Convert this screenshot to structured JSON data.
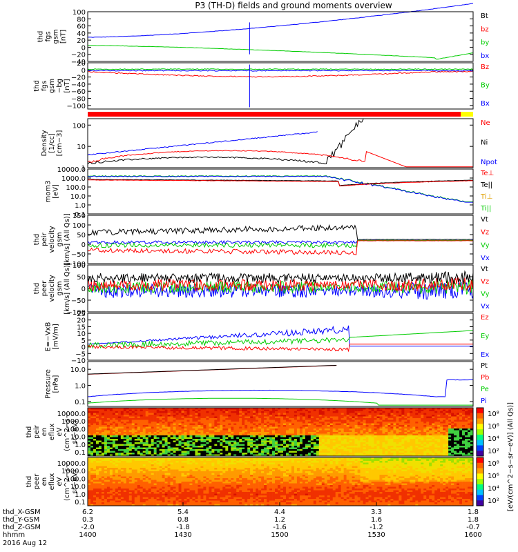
{
  "chart_data": {
    "type": "line",
    "title": "P3 (TH-D) fields and ground moments overview",
    "x": {
      "ticks": [
        "1400",
        "1430",
        "1500",
        "1530",
        "1600"
      ],
      "ephemeris": [
        {
          "label": "thd_X-GSM",
          "values": [
            "6.2",
            "5.4",
            "4.4",
            "3.3",
            "1.8"
          ]
        },
        {
          "label": "thd_Y-GSM",
          "values": [
            "0.3",
            "0.8",
            "1.2",
            "1.6",
            "1.8"
          ]
        },
        {
          "label": "thd_Z-GSM",
          "values": [
            "-2.0",
            "-1.8",
            "-1.6",
            "-1.2",
            "-0.7"
          ]
        },
        {
          "label": "hhmm",
          "values": [
            "1400",
            "1430",
            "1500",
            "1530",
            "1600"
          ]
        }
      ],
      "date": "2016 Aug 12"
    },
    "panels": [
      {
        "ylabel": [
          "thd",
          "fgs",
          "gsm",
          "[nT]"
        ],
        "ylim": [
          -40,
          100
        ],
        "yticks": [
          "100",
          "80",
          "60",
          "40",
          "20",
          "0",
          "−20",
          "−40"
        ],
        "legend": [
          {
            "name": "Bt",
            "color": "#000000"
          },
          {
            "name": "bz",
            "color": "#ff0000"
          },
          {
            "name": "by",
            "color": "#00cc00"
          },
          {
            "name": "bx",
            "color": "#0000ff"
          }
        ]
      },
      {
        "ylabel": [
          "thd",
          "fgs",
          "gsm",
          "−bg",
          "[nT]"
        ],
        "ylim": [
          -110,
          20
        ],
        "yticks": [
          "20",
          "0",
          "−20",
          "−40",
          "−60",
          "−80",
          "−100"
        ],
        "legend": [
          {
            "name": "Bz",
            "color": "#ff0000"
          },
          {
            "name": "By",
            "color": "#00cc00"
          },
          {
            "name": "Bx",
            "color": "#0000ff"
          }
        ]
      },
      {
        "ylabel": [
          "Density",
          "[1/cc]",
          "[cm−3]"
        ],
        "scale": "log",
        "ylim": [
          1,
          200
        ],
        "yticks": [
          "100",
          "10",
          "1"
        ],
        "legend": [
          {
            "name": "Ne",
            "color": "#ff0000"
          },
          {
            "name": "Ni",
            "color": "#000000"
          },
          {
            "name": "Npot",
            "color": "#0000ff"
          }
        ]
      },
      {
        "ylabel": [
          "mom3",
          "[eV]"
        ],
        "scale": "log",
        "ylim": [
          0.1,
          10000
        ],
        "yticks": [
          "10000.0",
          "1000.0",
          "100.0",
          "10.0",
          "1.0",
          "0.1"
        ],
        "legend": [
          {
            "name": "Te⊥",
            "color": "#ff0000"
          },
          {
            "name": "Te||",
            "color": "#000000"
          },
          {
            "name": "Ti⊥",
            "color": "#e0a000"
          },
          {
            "name": "Ti||",
            "color": "#00cc00"
          }
        ]
      },
      {
        "ylabel": [
          "thd",
          "peir",
          "velocity",
          "gsm",
          "[km/s] (All Qs)]"
        ],
        "ylim": [
          -100,
          150
        ],
        "yticks": [
          "150",
          "100",
          "50",
          "0",
          "−50",
          "−100"
        ],
        "legend": [
          {
            "name": "Vt",
            "color": "#000000"
          },
          {
            "name": "Vz",
            "color": "#ff0000"
          },
          {
            "name": "Vy",
            "color": "#00cc00"
          },
          {
            "name": "Vx",
            "color": "#0000ff"
          }
        ]
      },
      {
        "ylabel": [
          "thd",
          "peer",
          "velocity",
          "gsm",
          "[km/s] (All Qs)]"
        ],
        "ylim": [
          -100,
          100
        ],
        "yticks": [
          "100",
          "50",
          "0",
          "−50",
          "−100"
        ],
        "legend": [
          {
            "name": "Vt",
            "color": "#000000"
          },
          {
            "name": "Vz",
            "color": "#ff0000"
          },
          {
            "name": "Vy",
            "color": "#00cc00"
          },
          {
            "name": "Vx",
            "color": "#0000ff"
          }
        ]
      },
      {
        "ylabel": [
          "E=−VxB",
          "[mV/m]"
        ],
        "ylim": [
          -10,
          25
        ],
        "yticks": [
          "25",
          "20",
          "15",
          "10",
          "5",
          "0",
          "−5",
          "−10"
        ],
        "legend": [
          {
            "name": "Ez",
            "color": "#ff0000"
          },
          {
            "name": "Ey",
            "color": "#00cc00"
          },
          {
            "name": "Ex",
            "color": "#0000ff"
          }
        ]
      },
      {
        "ylabel": [
          "Pressure",
          "[nPa]"
        ],
        "scale": "log",
        "ylim": [
          0.05,
          30
        ],
        "yticks": [
          "10.0",
          "1.0",
          "0.1"
        ],
        "legend": [
          {
            "name": "Pt",
            "color": "#000000"
          },
          {
            "name": "Pb",
            "color": "#ff0000"
          },
          {
            "name": "Pe",
            "color": "#00cc00"
          },
          {
            "name": "Pi",
            "color": "#0000ff"
          }
        ]
      },
      {
        "ylabel": [
          "thd",
          "peir",
          "en",
          "eflux",
          "eV",
          "(cm^2−s−",
          "sr−eV)"
        ],
        "type": "heatmap",
        "yticks": [
          "10000.0",
          "1000.0",
          "100.0",
          "10.0",
          "1.0",
          "0.1"
        ]
      },
      {
        "ylabel": [
          "thd",
          "peer",
          "en",
          "eflux",
          "eV",
          "(cm^2−s−",
          "sr−eV)"
        ],
        "type": "heatmap",
        "yticks": [
          "10000.0",
          "1000.0",
          "100.0",
          "10.0",
          "1.0",
          "0.1"
        ]
      }
    ],
    "colorbar": {
      "label": "[eV/(cm^2−s−sr−eV)] (All Qs)]",
      "ticks": [
        "10⁸",
        "10⁶",
        "10⁴",
        "10²",
        "10⁸",
        "10⁶",
        "10⁴",
        "10²"
      ]
    }
  }
}
